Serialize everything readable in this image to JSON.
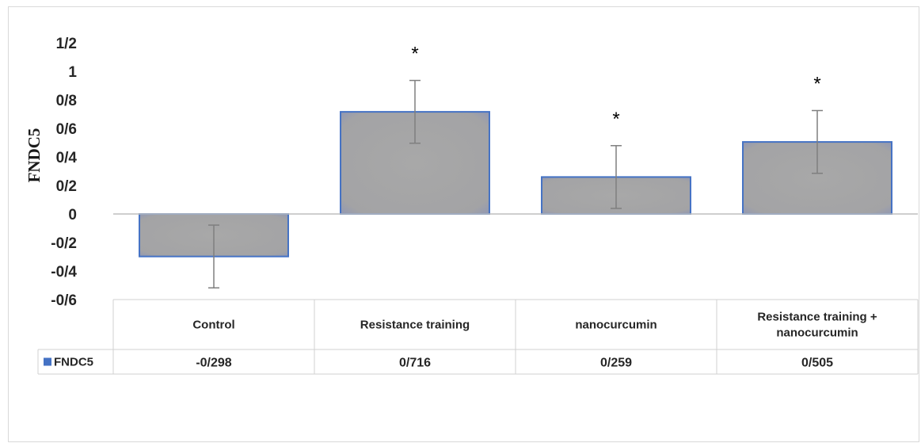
{
  "chart_data": {
    "type": "bar",
    "ylabel": "FNDC5",
    "categories": [
      "Control",
      "Resistance training",
      "nanocurcumin",
      "Resistance training +\nnanocurcumin"
    ],
    "series": [
      {
        "name": "FNDC5",
        "values": [
          -0.298,
          0.716,
          0.259,
          0.505
        ],
        "value_labels": [
          "-0/298",
          "0/716",
          "0/259",
          "0/505"
        ],
        "error": [
          0.22,
          0.22,
          0.22,
          0.22
        ],
        "color": "#a6a6a6",
        "border_color": "#4472c4",
        "legend_color": "#4472c4"
      }
    ],
    "significance": [
      "",
      "*",
      "*",
      "*"
    ],
    "ylim": [
      -0.6,
      1.2
    ],
    "yticks": [
      -0.6,
      -0.4,
      -0.2,
      0,
      0.2,
      0.4,
      0.6,
      0.8,
      1,
      1.2
    ],
    "ytick_labels": [
      "-0/6",
      "-0/4",
      "-0/2",
      "0",
      "0/2",
      "0/4",
      "0/6",
      "0/8",
      "1",
      "1/2"
    ],
    "grid": false,
    "legend": "data-table"
  }
}
